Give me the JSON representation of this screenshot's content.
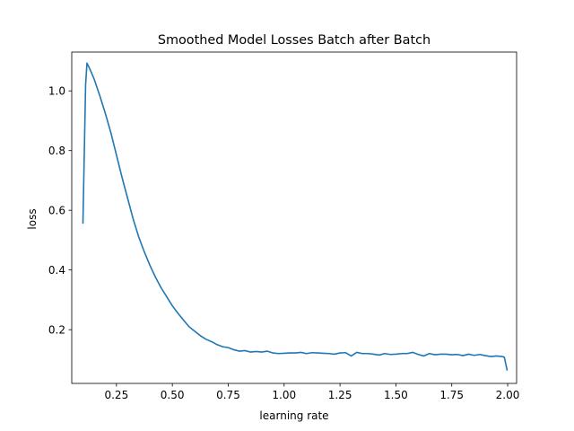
{
  "chart_data": {
    "type": "line",
    "title": "Smoothed Model Losses Batch after Batch",
    "xlabel": "learning rate",
    "ylabel": "loss",
    "xlim": [
      0.05,
      2.04
    ],
    "ylim": [
      0.02,
      1.13
    ],
    "grid": false,
    "xticks": [
      0.25,
      0.5,
      0.75,
      1.0,
      1.25,
      1.5,
      1.75,
      2.0
    ],
    "xtick_labels": [
      "0.25",
      "0.50",
      "0.75",
      "1.00",
      "1.25",
      "1.50",
      "1.75",
      "2.00"
    ],
    "yticks": [
      0.2,
      0.4,
      0.6,
      0.8,
      1.0
    ],
    "ytick_labels": [
      "0.2",
      "0.4",
      "0.6",
      "0.8",
      "1.0"
    ],
    "series": [
      {
        "color": "#1f77b4",
        "x": [
          0.1,
          0.112,
          0.118,
          0.13,
          0.15,
          0.175,
          0.2,
          0.225,
          0.25,
          0.275,
          0.3,
          0.325,
          0.35,
          0.375,
          0.4,
          0.425,
          0.45,
          0.475,
          0.5,
          0.525,
          0.55,
          0.575,
          0.6,
          0.625,
          0.65,
          0.675,
          0.7,
          0.725,
          0.75,
          0.775,
          0.8,
          0.825,
          0.85,
          0.875,
          0.9,
          0.925,
          0.95,
          0.975,
          1.0,
          1.025,
          1.05,
          1.075,
          1.1,
          1.125,
          1.15,
          1.175,
          1.2,
          1.225,
          1.25,
          1.275,
          1.3,
          1.325,
          1.35,
          1.375,
          1.4,
          1.425,
          1.45,
          1.475,
          1.5,
          1.525,
          1.55,
          1.575,
          1.6,
          1.625,
          1.65,
          1.675,
          1.7,
          1.725,
          1.75,
          1.775,
          1.8,
          1.825,
          1.85,
          1.875,
          1.9,
          1.925,
          1.95,
          1.975,
          1.985,
          1.998
        ],
        "y": [
          0.555,
          1.02,
          1.093,
          1.075,
          1.04,
          0.985,
          0.925,
          0.86,
          0.785,
          0.71,
          0.64,
          0.57,
          0.51,
          0.46,
          0.415,
          0.375,
          0.34,
          0.31,
          0.28,
          0.255,
          0.232,
          0.21,
          0.195,
          0.18,
          0.168,
          0.16,
          0.15,
          0.143,
          0.14,
          0.133,
          0.128,
          0.13,
          0.125,
          0.127,
          0.125,
          0.128,
          0.122,
          0.12,
          0.121,
          0.122,
          0.122,
          0.124,
          0.12,
          0.123,
          0.122,
          0.121,
          0.12,
          0.118,
          0.122,
          0.123,
          0.112,
          0.124,
          0.12,
          0.12,
          0.118,
          0.115,
          0.12,
          0.117,
          0.118,
          0.12,
          0.12,
          0.124,
          0.117,
          0.112,
          0.12,
          0.116,
          0.118,
          0.118,
          0.116,
          0.117,
          0.113,
          0.118,
          0.114,
          0.117,
          0.113,
          0.11,
          0.112,
          0.11,
          0.108,
          0.063
        ]
      }
    ]
  }
}
